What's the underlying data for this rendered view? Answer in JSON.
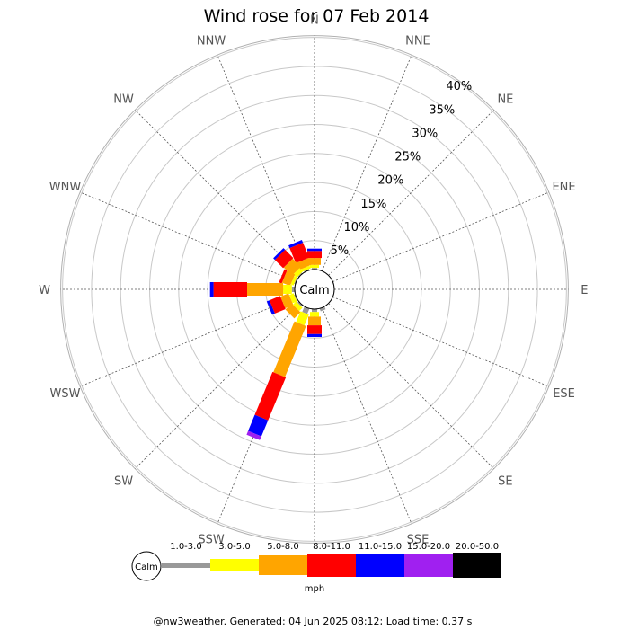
{
  "chart_data": {
    "type": "windrose",
    "title": "Wind rose for 07 Feb 2014",
    "calm_label": "Calm",
    "unit": "mph",
    "footer": "@nw3weather. Generated: 04 Jun 2025 08:12; Load time: 0.37 s",
    "directions": [
      "N",
      "NNE",
      "NE",
      "ENE",
      "E",
      "ESE",
      "SE",
      "SSE",
      "S",
      "SSW",
      "SW",
      "WSW",
      "W",
      "WNW",
      "NW",
      "NNW"
    ],
    "ring_labels": [
      "5%",
      "10%",
      "15%",
      "20%",
      "25%",
      "30%",
      "35%",
      "40%"
    ],
    "ring_values": [
      5,
      10,
      15,
      20,
      25,
      30,
      35,
      40
    ],
    "speed_bins": [
      {
        "label": "1.0-3.0",
        "color": "#999999"
      },
      {
        "label": "3.0-5.0",
        "color": "#ffff00"
      },
      {
        "label": "5.0-8.0",
        "color": "#ffa500"
      },
      {
        "label": "8.0-11.0",
        "color": "#ff0000"
      },
      {
        "label": "11.0-15.0",
        "color": "#0000ff"
      },
      {
        "label": "15.0-20.0",
        "color": "#a020f0"
      },
      {
        "label": "20.0-50.0",
        "color": "#000000"
      }
    ],
    "series": [
      {
        "direction": "N",
        "values": [
          0.3,
          0.5,
          1.2,
          1.2,
          0.4,
          0,
          0
        ]
      },
      {
        "direction": "NNW",
        "values": [
          0.2,
          0.5,
          1.3,
          2.8,
          0.5,
          0,
          0
        ]
      },
      {
        "direction": "NW",
        "values": [
          0.2,
          0.8,
          2.0,
          2.0,
          0.4,
          0,
          0
        ]
      },
      {
        "direction": "WNW",
        "values": [
          0.2,
          0.5,
          1.5,
          0.5,
          0,
          0,
          0
        ]
      },
      {
        "direction": "W",
        "values": [
          0.5,
          1.5,
          6.2,
          5.8,
          0.6,
          0,
          0
        ]
      },
      {
        "direction": "WSW",
        "values": [
          0.2,
          0.8,
          1.5,
          2.0,
          0.5,
          0,
          0
        ]
      },
      {
        "direction": "SW",
        "values": [
          0.3,
          0.8,
          1.5,
          0,
          0,
          0,
          0
        ]
      },
      {
        "direction": "SSW",
        "values": [
          1.0,
          2.0,
          9.5,
          8.0,
          3.0,
          0.7,
          0
        ]
      },
      {
        "direction": "S",
        "values": [
          0.5,
          0.8,
          1.5,
          1.5,
          0.5,
          0,
          0
        ]
      },
      {
        "direction": "SSE",
        "values": [
          0.5,
          0,
          0,
          0,
          0,
          0,
          0
        ]
      }
    ]
  }
}
